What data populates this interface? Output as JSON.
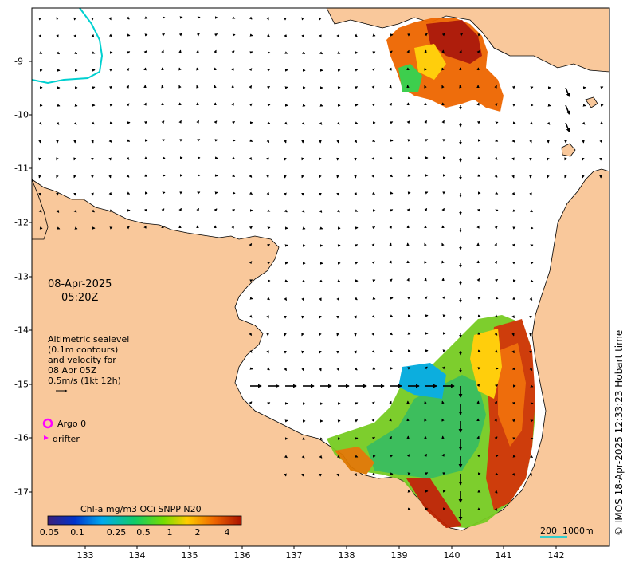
{
  "map": {
    "date_line": "08-Apr-2025",
    "time_line": "05:20Z",
    "info_lines": [
      "Altimetric sealevel",
      "(0.1m contours)",
      "and velocity for",
      "08 Apr 05Z",
      "0.5m/s (1kt 12h)"
    ],
    "legend": {
      "argo_label": "Argo 0",
      "drifter_label": "drifter",
      "argo_color": "#ff00ff",
      "drifter_color": "#ff00ff"
    },
    "colorbar": {
      "title": "Chl-a mg/m3 OCi SNPP N20",
      "ticks": [
        "0.05",
        "0.1",
        "0.25",
        "0.5",
        "1",
        "2",
        "4"
      ],
      "colors": [
        "#3b1f7a",
        "#0033cc",
        "#00aaee",
        "#11cc66",
        "#77dd00",
        "#ffcc00",
        "#ee6600",
        "#aa1100"
      ]
    },
    "scale_bar": {
      "label_dist": "200",
      "label_depth": "1000m",
      "color": "#33cccc"
    },
    "credit": "© IMOS 18-Apr-2025 12:33:23 Hobart time",
    "x_ticks": [
      "133",
      "134",
      "135",
      "136",
      "137",
      "138",
      "139",
      "140",
      "141",
      "142"
    ],
    "y_ticks": [
      "-9",
      "-10",
      "-11",
      "-12",
      "-13",
      "-14",
      "-15",
      "-16",
      "-17"
    ],
    "land_color": "#f9c89b",
    "sea_color": "#ffffff",
    "contour_color": "#00d0d0"
  }
}
